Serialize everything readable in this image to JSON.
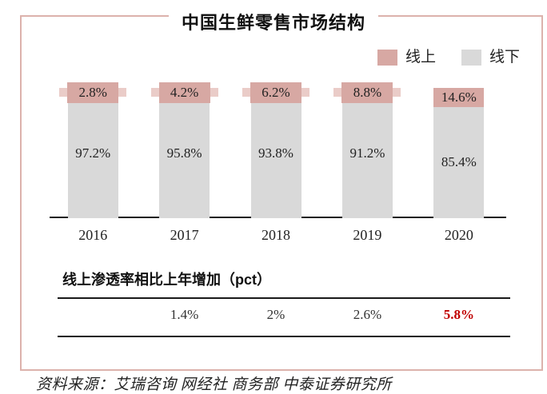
{
  "title": "中国生鲜零售市场结构",
  "legend": [
    {
      "label": "线上",
      "color": "#d7a8a3"
    },
    {
      "label": "线下",
      "color": "#d9d9d9"
    }
  ],
  "chart_data": {
    "type": "bar",
    "stacked": true,
    "categories": [
      "2016",
      "2017",
      "2018",
      "2019",
      "2020"
    ],
    "series": [
      {
        "name": "线上",
        "color": "#d7a8a3",
        "values": [
          2.8,
          4.2,
          6.2,
          8.8,
          14.6
        ]
      },
      {
        "name": "线下",
        "color": "#d9d9d9",
        "values": [
          97.2,
          95.8,
          93.8,
          91.2,
          85.4
        ]
      }
    ],
    "online_labels": [
      "2.8%",
      "4.2%",
      "6.2%",
      "8.8%",
      "14.6%"
    ],
    "offline_labels": [
      "97.2%",
      "95.8%",
      "93.8%",
      "91.2%",
      "85.4%"
    ],
    "title": "中国生鲜零售市场结构",
    "xlabel": "",
    "ylabel": "",
    "ylim": [
      0,
      100
    ],
    "grid": false,
    "legend_position": "top-right"
  },
  "table": {
    "heading": "线上渗透率相比上年增加（pct）",
    "values": [
      {
        "year": "2016",
        "value": ""
      },
      {
        "year": "2017",
        "value": "1.4%"
      },
      {
        "year": "2018",
        "value": "2%"
      },
      {
        "year": "2019",
        "value": "2.6%"
      },
      {
        "year": "2020",
        "value": "5.8%",
        "highlight": true
      }
    ]
  },
  "source": "资料来源：艾瑞咨询 网经社 商务部 中泰证券研究所",
  "colors": {
    "online_pink": "#d7a8a3",
    "online_strip_pink": "#eaccc8",
    "offline_gray": "#d9d9d9",
    "frame_border_pink": "#dcb2ac",
    "highlight_red": "#c00000",
    "line_black": "#1a1a1a"
  }
}
